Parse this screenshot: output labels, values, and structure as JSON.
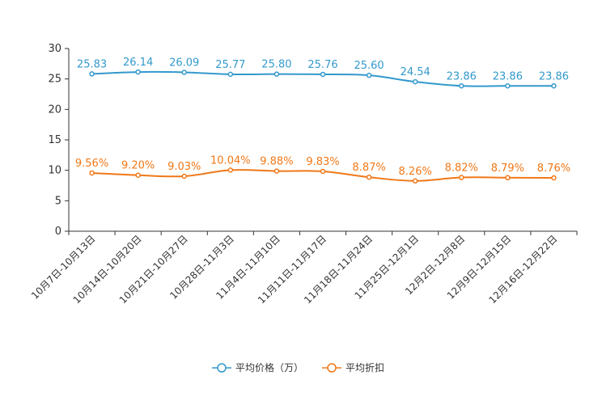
{
  "chart_data": {
    "type": "line",
    "title": "",
    "xlabel": "",
    "ylabel": "",
    "ylim": [
      0,
      30
    ],
    "yticks": [
      0,
      5,
      10,
      15,
      20,
      25,
      30
    ],
    "grid": false,
    "legend_position": "bottom",
    "categories": [
      "10月7日-10月13日",
      "10月14日-10月20日",
      "10月21日-10月27日",
      "10月28日-11月3日",
      "11月4日-11月10日",
      "11月11日-11月17日",
      "11月18日-11月24日",
      "11月25日-12月1日",
      "12月2日-12月8日",
      "12月9日-12月15日",
      "12月16日-12月22日"
    ],
    "series": [
      {
        "name": "平均价格（万）",
        "color": "#3399cc",
        "values": [
          25.83,
          26.14,
          26.09,
          25.77,
          25.8,
          25.76,
          25.6,
          24.54,
          23.86,
          23.86,
          23.86
        ],
        "labels": [
          "25.83",
          "26.14",
          "26.09",
          "25.77",
          "25.80",
          "25.76",
          "25.60",
          "24.54",
          "23.86",
          "23.86",
          "23.86"
        ]
      },
      {
        "name": "平均折扣",
        "color": "#f07818",
        "values": [
          9.56,
          9.2,
          9.03,
          10.04,
          9.88,
          9.83,
          8.87,
          8.26,
          8.82,
          8.79,
          8.76
        ],
        "labels": [
          "9.56%",
          "9.20%",
          "9.03%",
          "10.04%",
          "9.88%",
          "9.83%",
          "8.87%",
          "8.26%",
          "8.82%",
          "8.79%",
          "8.76%"
        ]
      }
    ]
  }
}
